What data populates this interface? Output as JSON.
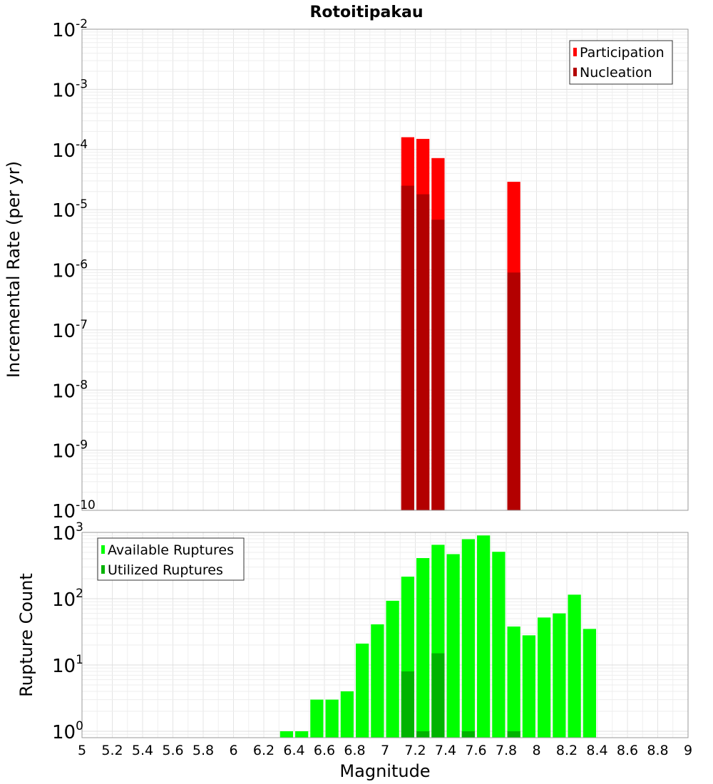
{
  "chart_data": [
    {
      "type": "bar",
      "title": "Rotoitipakau",
      "xlabel": "",
      "ylabel": "Incremental Rate (per yr)",
      "yscale": "log",
      "ylim": [
        1e-10,
        0.01
      ],
      "xlim": [
        5,
        9
      ],
      "y_tick_exponents": [
        -10,
        -9,
        -8,
        -7,
        -6,
        -5,
        -4,
        -3,
        -2
      ],
      "legend": {
        "position": "top-right",
        "entries": [
          "Participation",
          "Nucleation"
        ]
      },
      "grid": true,
      "bin_width": 0.1,
      "series": [
        {
          "name": "Participation",
          "color": "#ff0000",
          "points": [
            {
              "x": 7.15,
              "y": 0.00016
            },
            {
              "x": 7.25,
              "y": 0.00015
            },
            {
              "x": 7.35,
              "y": 7.2e-05
            },
            {
              "x": 7.85,
              "y": 2.9e-05
            }
          ]
        },
        {
          "name": "Nucleation",
          "color": "#b30000",
          "points": [
            {
              "x": 7.15,
              "y": 2.5e-05
            },
            {
              "x": 7.25,
              "y": 1.8e-05
            },
            {
              "x": 7.35,
              "y": 6.8e-06
            },
            {
              "x": 7.85,
              "y": 9e-07
            }
          ]
        }
      ]
    },
    {
      "type": "bar",
      "title": "",
      "xlabel": "Magnitude",
      "ylabel": "Rupture Count",
      "yscale": "log",
      "ylim": [
        0.8,
        1000
      ],
      "xlim": [
        5,
        9
      ],
      "y_tick_exponents": [
        0,
        1,
        2,
        3
      ],
      "x_ticks": [
        "5",
        "5.2",
        "5.4",
        "5.6",
        "5.8",
        "6",
        "6.2",
        "6.4",
        "6.6",
        "6.8",
        "7",
        "7.2",
        "7.4",
        "7.6",
        "7.8",
        "8",
        "8.2",
        "8.4",
        "8.6",
        "8.8",
        "9"
      ],
      "legend": {
        "position": "top-left",
        "entries": [
          "Available Ruptures",
          "Utilized Ruptures"
        ]
      },
      "grid": true,
      "bin_width": 0.1,
      "series": [
        {
          "name": "Available Ruptures",
          "color": "#00ff00",
          "points": [
            {
              "x": 6.35,
              "y": 1
            },
            {
              "x": 6.45,
              "y": 1
            },
            {
              "x": 6.55,
              "y": 3
            },
            {
              "x": 6.65,
              "y": 3
            },
            {
              "x": 6.75,
              "y": 4
            },
            {
              "x": 6.85,
              "y": 21
            },
            {
              "x": 6.95,
              "y": 41
            },
            {
              "x": 7.05,
              "y": 93
            },
            {
              "x": 7.15,
              "y": 215
            },
            {
              "x": 7.25,
              "y": 410
            },
            {
              "x": 7.35,
              "y": 650
            },
            {
              "x": 7.45,
              "y": 470
            },
            {
              "x": 7.55,
              "y": 790
            },
            {
              "x": 7.65,
              "y": 900
            },
            {
              "x": 7.75,
              "y": 510
            },
            {
              "x": 7.85,
              "y": 38
            },
            {
              "x": 7.95,
              "y": 28
            },
            {
              "x": 8.05,
              "y": 52
            },
            {
              "x": 8.15,
              "y": 60
            },
            {
              "x": 8.25,
              "y": 115
            },
            {
              "x": 8.35,
              "y": 35
            }
          ]
        },
        {
          "name": "Utilized Ruptures",
          "color": "#00b300",
          "points": [
            {
              "x": 7.15,
              "y": 8
            },
            {
              "x": 7.25,
              "y": 1
            },
            {
              "x": 7.35,
              "y": 15
            },
            {
              "x": 7.55,
              "y": 1
            },
            {
              "x": 7.85,
              "y": 1
            }
          ]
        }
      ]
    }
  ]
}
